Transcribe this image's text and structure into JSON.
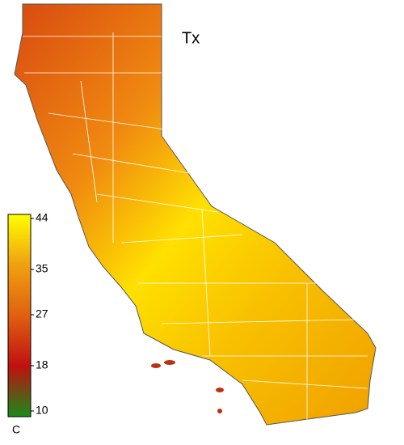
{
  "map": {
    "title": "Tx",
    "colorbar": {
      "lim": [
        10,
        44
      ],
      "ticks": [
        44,
        35,
        27,
        18,
        10
      ],
      "unit": "C",
      "colors": [
        "#1a8a1a",
        "#c01010",
        "#e06010",
        "#f0a010",
        "#ffff00"
      ]
    }
  }
}
